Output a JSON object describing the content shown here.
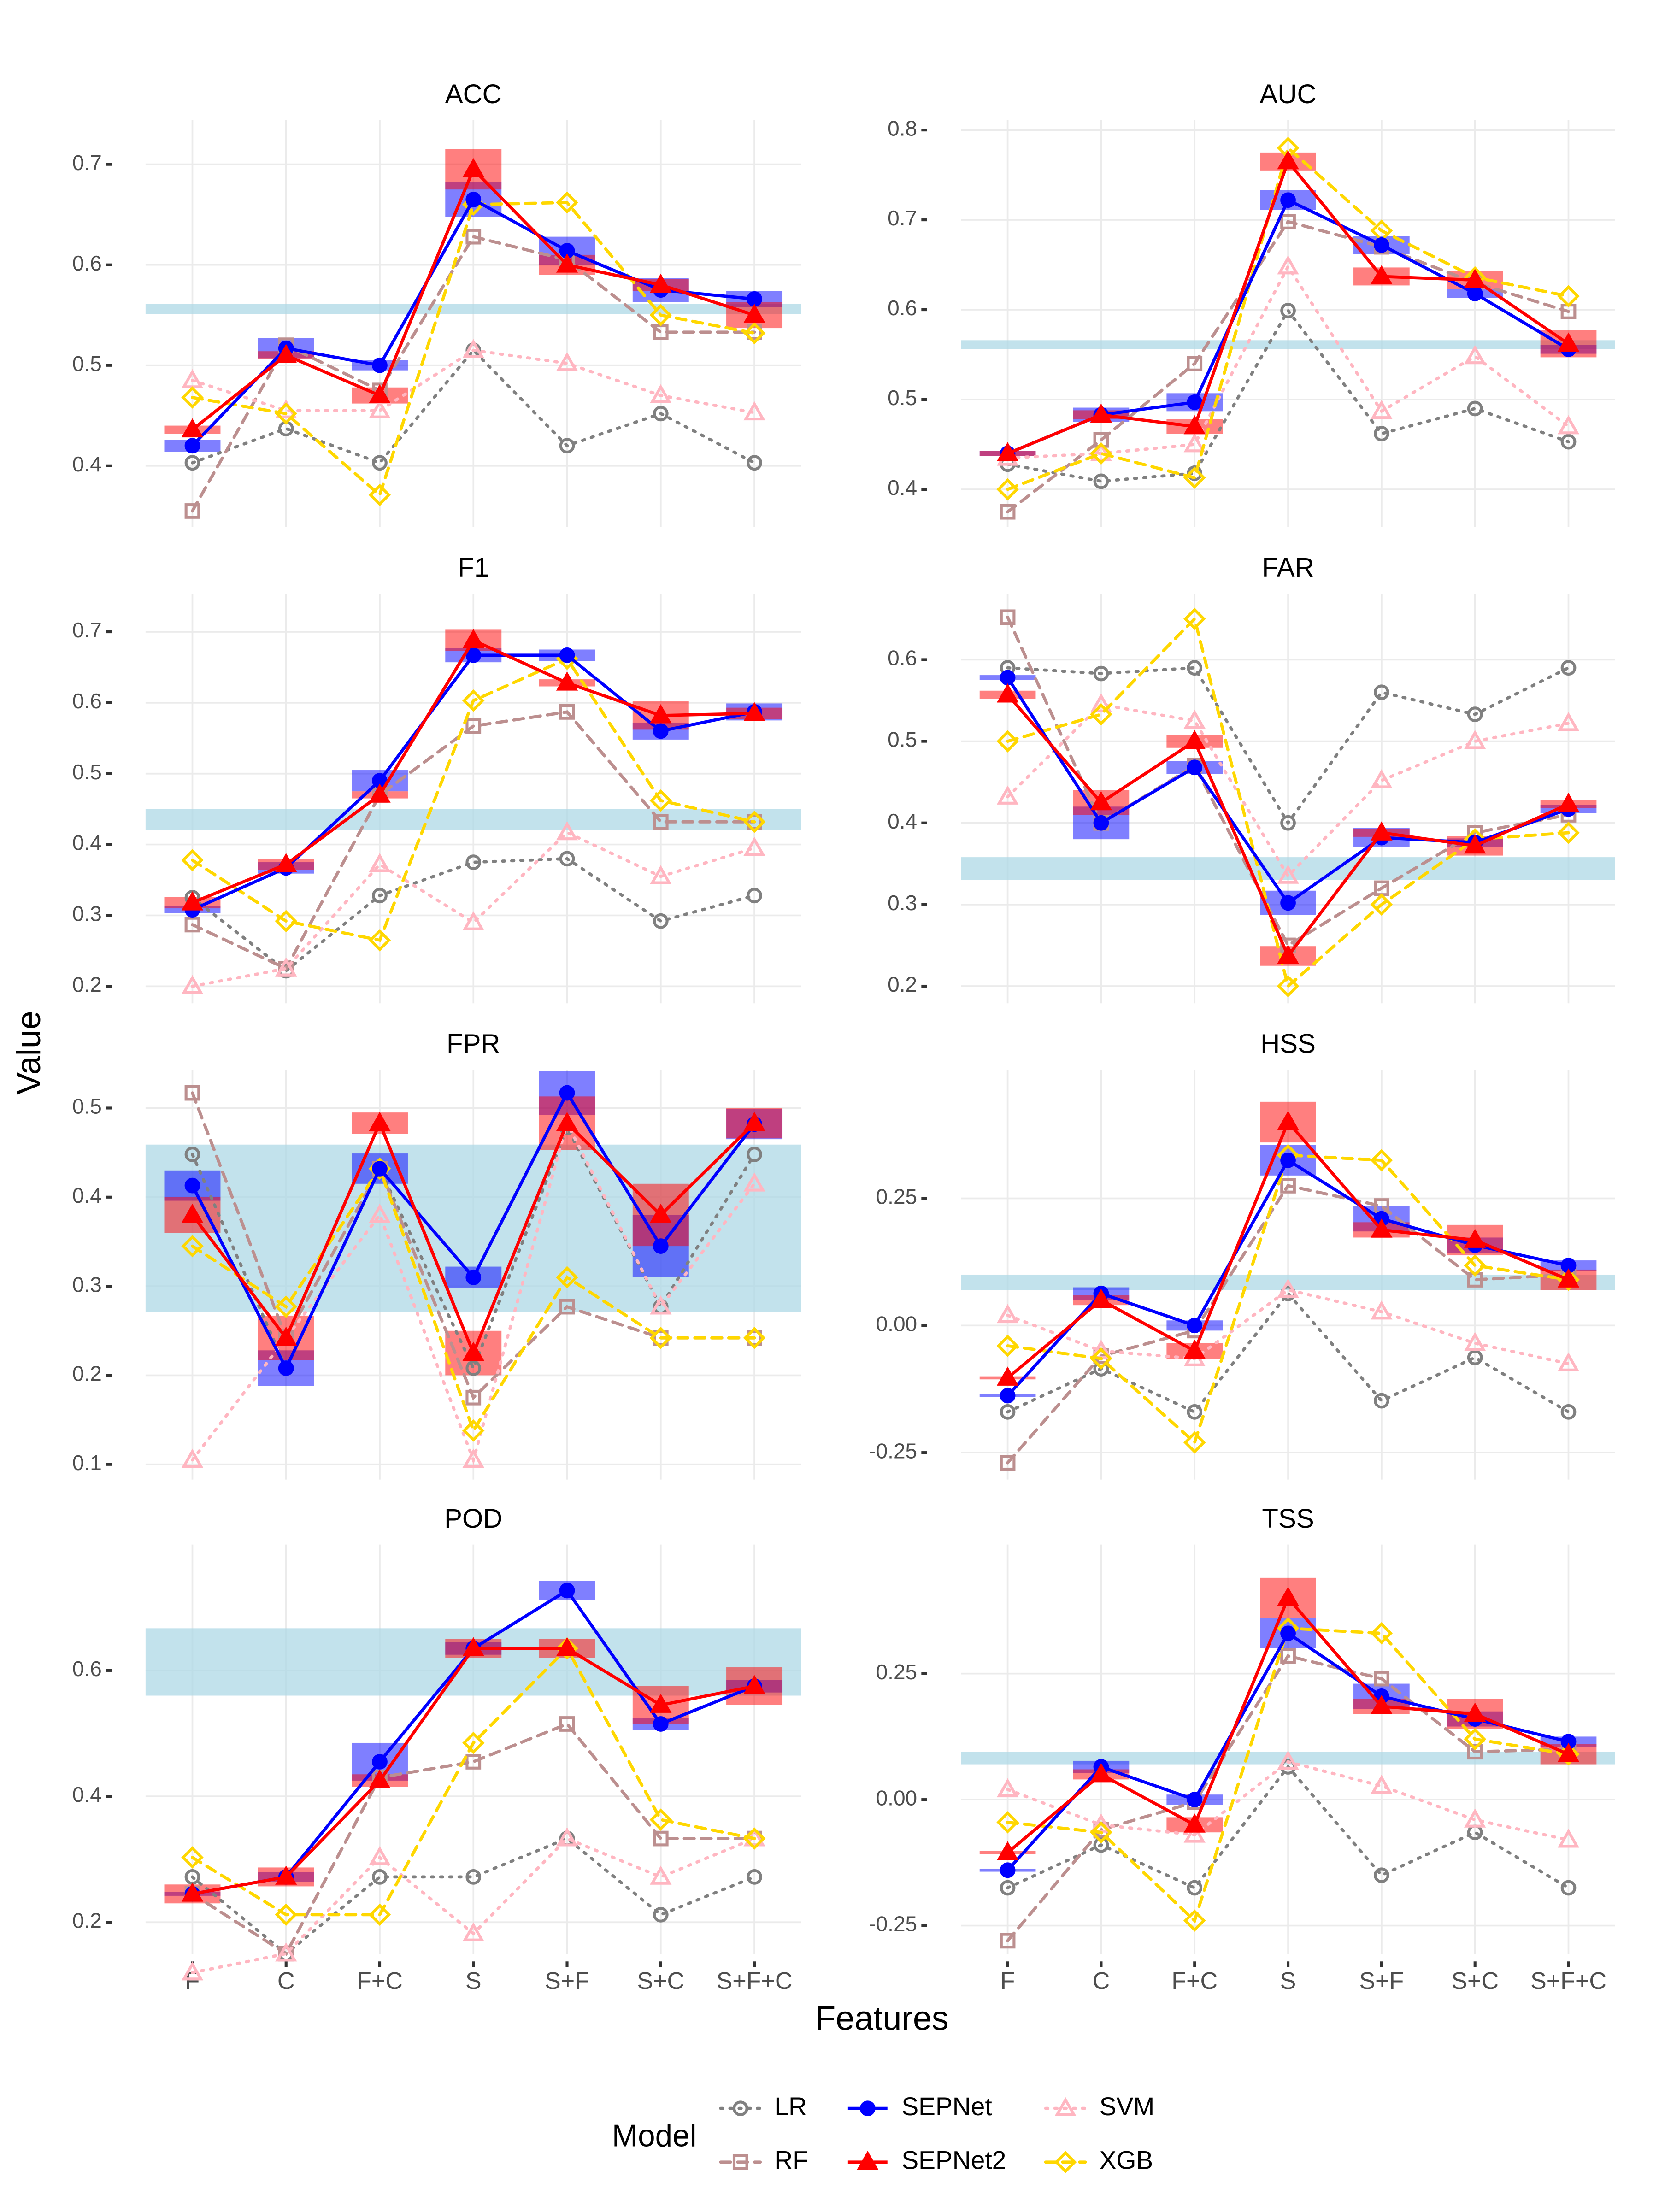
{
  "figure": {
    "xlabel": "Features",
    "ylabel": "Value",
    "legend_title": "Model"
  },
  "chart_data": [
    {
      "type": "line",
      "title": "ACC",
      "categories": [
        "F",
        "C",
        "F+C",
        "S",
        "S+F",
        "S+C",
        "S+F+C"
      ],
      "ylim": [
        0.339,
        0.744
      ],
      "yticks": [
        0.4,
        0.5,
        0.6,
        0.7
      ],
      "band": [
        0.551,
        0.561
      ],
      "band_color": "#add8e6",
      "grid": true,
      "series": [
        {
          "name": "LR",
          "color": "#808080",
          "values": [
            0.403,
            0.437,
            0.403,
            0.515,
            0.42,
            0.452,
            0.403
          ]
        },
        {
          "name": "RF",
          "color": "#bc8f8f",
          "values": [
            0.355,
            0.52,
            0.475,
            0.628,
            0.605,
            0.533,
            0.533
          ]
        },
        {
          "name": "SEPNet",
          "color": "#0000ff",
          "values": [
            0.42,
            0.517,
            0.5,
            0.665,
            0.614,
            0.575,
            0.566
          ],
          "errors": [
            0.006,
            0.01,
            0.005,
            0.017,
            0.014,
            0.012,
            0.008
          ]
        },
        {
          "name": "SEPNet2",
          "color": "#ff0000",
          "values": [
            0.436,
            0.51,
            0.47,
            0.695,
            0.6,
            0.58,
            0.55
          ],
          "errors": [
            0.004,
            0.004,
            0.008,
            0.02,
            0.01,
            0.006,
            0.013
          ]
        },
        {
          "name": "SVM",
          "color": "#ffb6c1",
          "values": [
            0.485,
            0.455,
            0.455,
            0.515,
            0.502,
            0.47,
            0.453
          ]
        },
        {
          "name": "XGB",
          "color": "#ffd700",
          "values": [
            0.468,
            0.452,
            0.371,
            0.66,
            0.662,
            0.55,
            0.532
          ]
        }
      ]
    },
    {
      "type": "line",
      "title": "AUC",
      "categories": [
        "F",
        "C",
        "F+C",
        "S",
        "S+F",
        "S+C",
        "S+F+C"
      ],
      "ylim": [
        0.358,
        0.811
      ],
      "yticks": [
        0.4,
        0.5,
        0.6,
        0.7,
        0.8
      ],
      "band": [
        0.556,
        0.566
      ],
      "band_color": "#add8e6",
      "grid": true,
      "series": [
        {
          "name": "LR",
          "color": "#808080",
          "values": [
            0.428,
            0.409,
            0.418,
            0.599,
            0.462,
            0.49,
            0.453
          ]
        },
        {
          "name": "RF",
          "color": "#bc8f8f",
          "values": [
            0.375,
            0.455,
            0.54,
            0.698,
            0.67,
            0.63,
            0.598
          ]
        },
        {
          "name": "SEPNet",
          "color": "#0000ff",
          "values": [
            0.44,
            0.483,
            0.497,
            0.722,
            0.672,
            0.618,
            0.556
          ],
          "errors": [
            0.003,
            0.008,
            0.01,
            0.011,
            0.01,
            0.005,
            0.005
          ]
        },
        {
          "name": "SEPNet2",
          "color": "#ff0000",
          "values": [
            0.44,
            0.483,
            0.47,
            0.765,
            0.637,
            0.633,
            0.562
          ],
          "errors": [
            0.003,
            0.005,
            0.008,
            0.01,
            0.01,
            0.01,
            0.015
          ]
        },
        {
          "name": "SVM",
          "color": "#ffb6c1",
          "values": [
            0.435,
            0.44,
            0.45,
            0.648,
            0.487,
            0.548,
            0.47
          ]
        },
        {
          "name": "XGB",
          "color": "#ffd700",
          "values": [
            0.4,
            0.44,
            0.413,
            0.78,
            0.688,
            0.636,
            0.615
          ]
        }
      ]
    },
    {
      "type": "line",
      "title": "F1",
      "categories": [
        "F",
        "C",
        "F+C",
        "S",
        "S+F",
        "S+C",
        "S+F+C"
      ],
      "ylim": [
        0.176,
        0.754
      ],
      "yticks": [
        0.2,
        0.3,
        0.4,
        0.5,
        0.6,
        0.7
      ],
      "band": [
        0.42,
        0.45
      ],
      "band_color": "#add8e6",
      "grid": true,
      "series": [
        {
          "name": "LR",
          "color": "#808080",
          "values": [
            0.325,
            0.222,
            0.328,
            0.375,
            0.38,
            0.292,
            0.328
          ]
        },
        {
          "name": "RF",
          "color": "#bc8f8f",
          "values": [
            0.287,
            0.225,
            0.47,
            0.567,
            0.587,
            0.432,
            0.432
          ]
        },
        {
          "name": "SEPNet",
          "color": "#0000ff",
          "values": [
            0.308,
            0.367,
            0.49,
            0.667,
            0.667,
            0.56,
            0.587
          ],
          "errors": [
            0.005,
            0.008,
            0.015,
            0.01,
            0.008,
            0.012,
            0.012
          ]
        },
        {
          "name": "SEPNet2",
          "color": "#ff0000",
          "values": [
            0.318,
            0.372,
            0.47,
            0.688,
            0.628,
            0.582,
            0.585
          ],
          "errors": [
            0.008,
            0.008,
            0.005,
            0.015,
            0.005,
            0.02,
            0.008
          ]
        },
        {
          "name": "SVM",
          "color": "#ffb6c1",
          "values": [
            0.2,
            0.225,
            0.372,
            0.29,
            0.417,
            0.355,
            0.395
          ]
        },
        {
          "name": "XGB",
          "color": "#ffd700",
          "values": [
            0.378,
            0.292,
            0.265,
            0.603,
            0.662,
            0.462,
            0.432
          ]
        }
      ]
    },
    {
      "type": "line",
      "title": "FAR",
      "categories": [
        "F",
        "C",
        "F+C",
        "S",
        "S+F",
        "S+C",
        "S+F+C"
      ],
      "ylim": [
        0.179,
        0.681
      ],
      "yticks": [
        0.2,
        0.3,
        0.4,
        0.5,
        0.6
      ],
      "band": [
        0.33,
        0.358
      ],
      "band_color": "#add8e6",
      "grid": true,
      "series": [
        {
          "name": "LR",
          "color": "#808080",
          "values": [
            0.59,
            0.583,
            0.59,
            0.4,
            0.56,
            0.533,
            0.59
          ]
        },
        {
          "name": "RF",
          "color": "#bc8f8f",
          "values": [
            0.652,
            0.4,
            0.47,
            0.25,
            0.32,
            0.388,
            0.41
          ]
        },
        {
          "name": "SEPNet",
          "color": "#0000ff",
          "values": [
            0.578,
            0.4,
            0.468,
            0.302,
            0.382,
            0.376,
            0.417
          ],
          "errors": [
            0.003,
            0.02,
            0.008,
            0.015,
            0.012,
            0.005,
            0.005
          ]
        },
        {
          "name": "SEPNet2",
          "color": "#ff0000",
          "values": [
            0.557,
            0.425,
            0.5,
            0.237,
            0.388,
            0.372,
            0.423
          ],
          "errors": [
            0.005,
            0.015,
            0.008,
            0.012,
            0.005,
            0.012,
            0.005
          ]
        },
        {
          "name": "SVM",
          "color": "#ffb6c1",
          "values": [
            0.432,
            0.545,
            0.525,
            0.335,
            0.452,
            0.5,
            0.522
          ]
        },
        {
          "name": "XGB",
          "color": "#ffd700",
          "values": [
            0.5,
            0.533,
            0.65,
            0.2,
            0.3,
            0.38,
            0.388
          ]
        }
      ]
    },
    {
      "type": "line",
      "title": "FPR",
      "categories": [
        "F",
        "C",
        "F+C",
        "S",
        "S+F",
        "S+C",
        "S+F+C"
      ],
      "ylim": [
        0.083,
        0.543
      ],
      "yticks": [
        0.1,
        0.2,
        0.3,
        0.4,
        0.5
      ],
      "band": [
        0.271,
        0.459
      ],
      "band_color": "#add8e6",
      "grid": true,
      "series": [
        {
          "name": "LR",
          "color": "#808080",
          "values": [
            0.448,
            0.208,
            0.432,
            0.208,
            0.478,
            0.277,
            0.448
          ]
        },
        {
          "name": "RF",
          "color": "#bc8f8f",
          "values": [
            0.517,
            0.242,
            0.432,
            0.175,
            0.277,
            0.242,
            0.242
          ]
        },
        {
          "name": "SEPNet",
          "color": "#0000ff",
          "values": [
            0.413,
            0.208,
            0.432,
            0.31,
            0.517,
            0.345,
            0.482
          ],
          "errors": [
            0.017,
            0.02,
            0.017,
            0.012,
            0.025,
            0.035,
            0.017
          ]
        },
        {
          "name": "SEPNet2",
          "color": "#ff0000",
          "values": [
            0.38,
            0.242,
            0.483,
            0.225,
            0.483,
            0.38,
            0.483
          ],
          "errors": [
            0.02,
            0.025,
            0.012,
            0.025,
            0.03,
            0.035,
            0.017
          ]
        },
        {
          "name": "SVM",
          "color": "#ffb6c1",
          "values": [
            0.105,
            0.242,
            0.38,
            0.105,
            0.483,
            0.277,
            0.415
          ]
        },
        {
          "name": "XGB",
          "color": "#ffd700",
          "values": [
            0.345,
            0.277,
            0.432,
            0.138,
            0.31,
            0.242,
            0.242
          ]
        }
      ]
    },
    {
      "type": "line",
      "title": "HSS",
      "categories": [
        "F",
        "C",
        "F+C",
        "S",
        "S+F",
        "S+C",
        "S+F+C"
      ],
      "ylim": [
        -0.303,
        0.503
      ],
      "yticks": [
        {
          "value": -0.25,
          "label": "-0.25"
        },
        {
          "value": 0,
          "label": "0.00"
        },
        {
          "value": 0.25,
          "label": "0.25"
        }
      ],
      "band": [
        0.07,
        0.1
      ],
      "band_color": "#add8e6",
      "grid": true,
      "series": [
        {
          "name": "LR",
          "color": "#808080",
          "values": [
            -0.17,
            -0.085,
            -0.17,
            0.063,
            -0.148,
            -0.063,
            -0.17
          ]
        },
        {
          "name": "RF",
          "color": "#bc8f8f",
          "values": [
            -0.27,
            -0.06,
            -0.01,
            0.275,
            0.235,
            0.09,
            0.1
          ]
        },
        {
          "name": "SEPNet",
          "color": "#0000ff",
          "values": [
            -0.138,
            0.063,
            0,
            0.325,
            0.21,
            0.158,
            0.118
          ],
          "errors": [
            0.003,
            0.012,
            0.01,
            0.03,
            0.025,
            0.015,
            0.01
          ]
        },
        {
          "name": "SEPNet2",
          "color": "#ff0000",
          "values": [
            -0.103,
            0.05,
            -0.05,
            0.4,
            0.188,
            0.168,
            0.09
          ],
          "errors": [
            0.003,
            0.01,
            0.015,
            0.04,
            0.015,
            0.03,
            0.02
          ]
        },
        {
          "name": "SVM",
          "color": "#ffb6c1",
          "values": [
            0.02,
            -0.05,
            -0.065,
            0.07,
            0.027,
            -0.035,
            -0.075
          ]
        },
        {
          "name": "XGB",
          "color": "#ffd700",
          "values": [
            -0.04,
            -0.065,
            -0.23,
            0.335,
            0.325,
            0.118,
            0.09
          ]
        }
      ]
    },
    {
      "type": "line",
      "title": "POD",
      "categories": [
        "F",
        "C",
        "F+C",
        "S",
        "S+F",
        "S+C",
        "S+F+C"
      ],
      "ylim": [
        0.149,
        0.8
      ],
      "yticks": [
        0.2,
        0.4,
        0.6
      ],
      "band": [
        0.56,
        0.667
      ],
      "band_color": "#add8e6",
      "grid": true,
      "series": [
        {
          "name": "LR",
          "color": "#808080",
          "values": [
            0.272,
            0.15,
            0.272,
            0.272,
            0.333,
            0.212,
            0.272
          ]
        },
        {
          "name": "RF",
          "color": "#bc8f8f",
          "values": [
            0.245,
            0.15,
            0.43,
            0.455,
            0.515,
            0.333,
            0.333
          ]
        },
        {
          "name": "SEPNet",
          "color": "#0000ff",
          "values": [
            0.245,
            0.272,
            0.455,
            0.635,
            0.727,
            0.515,
            0.575
          ],
          "errors": [
            0.003,
            0.008,
            0.03,
            0.01,
            0.015,
            0.01,
            0.01
          ]
        },
        {
          "name": "SEPNet2",
          "color": "#ff0000",
          "values": [
            0.245,
            0.272,
            0.425,
            0.635,
            0.635,
            0.545,
            0.575
          ],
          "errors": [
            0.015,
            0.015,
            0.01,
            0.015,
            0.015,
            0.03,
            0.03
          ]
        },
        {
          "name": "SVM",
          "color": "#ffb6c1",
          "values": [
            0.12,
            0.15,
            0.303,
            0.182,
            0.333,
            0.272,
            0.333
          ]
        },
        {
          "name": "XGB",
          "color": "#ffd700",
          "values": [
            0.303,
            0.212,
            0.212,
            0.485,
            0.635,
            0.363,
            0.333
          ]
        }
      ]
    },
    {
      "type": "line",
      "title": "TSS",
      "categories": [
        "F",
        "C",
        "F+C",
        "S",
        "S+F",
        "S+C",
        "S+F+C"
      ],
      "ylim": [
        -0.307,
        0.506
      ],
      "yticks": [
        {
          "value": -0.25,
          "label": "-0.25"
        },
        {
          "value": 0,
          "label": "0.00"
        },
        {
          "value": 0.25,
          "label": "0.25"
        }
      ],
      "band": [
        0.07,
        0.095
      ],
      "band_color": "#add8e6",
      "grid": true,
      "series": [
        {
          "name": "LR",
          "color": "#808080",
          "values": [
            -0.175,
            -0.09,
            -0.175,
            0.065,
            -0.15,
            -0.065,
            -0.175
          ]
        },
        {
          "name": "RF",
          "color": "#bc8f8f",
          "values": [
            -0.28,
            -0.06,
            -0.005,
            0.285,
            0.24,
            0.095,
            0.1
          ]
        },
        {
          "name": "SEPNet",
          "color": "#0000ff",
          "values": [
            -0.14,
            0.065,
            0,
            0.33,
            0.205,
            0.16,
            0.115
          ],
          "errors": [
            0.003,
            0.012,
            0.01,
            0.03,
            0.025,
            0.015,
            0.01
          ]
        },
        {
          "name": "SEPNet2",
          "color": "#ff0000",
          "values": [
            -0.105,
            0.05,
            -0.05,
            0.4,
            0.185,
            0.17,
            0.09
          ],
          "errors": [
            0.003,
            0.01,
            0.015,
            0.04,
            0.015,
            0.03,
            0.02
          ]
        },
        {
          "name": "SVM",
          "color": "#ffb6c1",
          "values": [
            0.02,
            -0.05,
            -0.07,
            0.075,
            0.027,
            -0.04,
            -0.08
          ]
        },
        {
          "name": "XGB",
          "color": "#ffd700",
          "values": [
            -0.045,
            -0.065,
            -0.24,
            0.34,
            0.33,
            0.12,
            0.09
          ]
        }
      ]
    }
  ]
}
